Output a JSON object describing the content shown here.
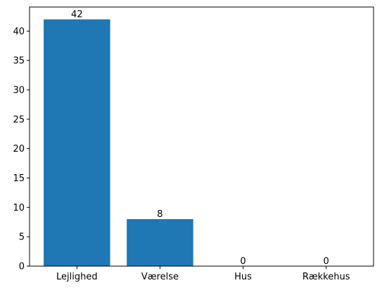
{
  "chart_data": {
    "type": "bar",
    "title": "",
    "xlabel": "",
    "ylabel": "",
    "categories": [
      "Lejlighed",
      "Værelse",
      "Hus",
      "Rækkehus"
    ],
    "values": [
      42,
      8,
      0,
      0
    ],
    "data_labels": [
      "42",
      "8",
      "0",
      "0"
    ],
    "ylim": [
      0,
      44.1
    ],
    "yticks": [
      0,
      5,
      10,
      15,
      20,
      25,
      30,
      35,
      40
    ],
    "ytick_labels": [
      "0",
      "5",
      "10",
      "15",
      "20",
      "25",
      "30",
      "35",
      "40"
    ],
    "grid": false,
    "legend": "none",
    "bar_color": "#1f77b4"
  }
}
